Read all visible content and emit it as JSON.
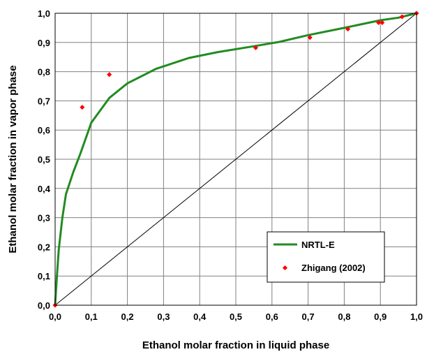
{
  "chart_data": {
    "type": "line",
    "xlabel": "Ethanol molar fraction in liquid phase",
    "ylabel": "Ethanol molar fraction in vapor phase",
    "xlim": [
      0,
      1
    ],
    "ylim": [
      0,
      1
    ],
    "grid": true,
    "legend_position": "bottom-right",
    "x_ticks": [
      "0,0",
      "0,1",
      "0,2",
      "0,3",
      "0,4",
      "0,5",
      "0,6",
      "0,7",
      "0,8",
      "0,9",
      "1,0"
    ],
    "y_ticks": [
      "0,0",
      "0,1",
      "0,2",
      "0,3",
      "0,4",
      "0,5",
      "0,6",
      "0,7",
      "0,8",
      "0,9",
      "1,0"
    ],
    "series": [
      {
        "name": "NRTL-E",
        "kind": "line",
        "color": "#228B22",
        "x": [
          0.0,
          0.005,
          0.01,
          0.02,
          0.03,
          0.05,
          0.07,
          0.1,
          0.15,
          0.2,
          0.28,
          0.37,
          0.45,
          0.55,
          0.62,
          0.7,
          0.8,
          0.9,
          0.95,
          1.0
        ],
        "y": [
          0.0,
          0.1,
          0.19,
          0.3,
          0.38,
          0.455,
          0.52,
          0.625,
          0.71,
          0.76,
          0.81,
          0.847,
          0.867,
          0.887,
          0.902,
          0.925,
          0.95,
          0.976,
          0.985,
          1.0
        ]
      },
      {
        "name": "Zhigang (2002)",
        "kind": "scatter",
        "color": "#ff0000",
        "x": [
          0.0,
          0.075,
          0.15,
          0.555,
          0.705,
          0.81,
          0.895,
          0.905,
          0.96,
          1.0
        ],
        "y": [
          0.0,
          0.678,
          0.79,
          0.882,
          0.917,
          0.946,
          0.968,
          0.968,
          0.988,
          1.0
        ]
      },
      {
        "name": "",
        "kind": "diagonal",
        "color": "#000000",
        "x": [
          0,
          1
        ],
        "y": [
          0,
          1
        ]
      }
    ]
  }
}
